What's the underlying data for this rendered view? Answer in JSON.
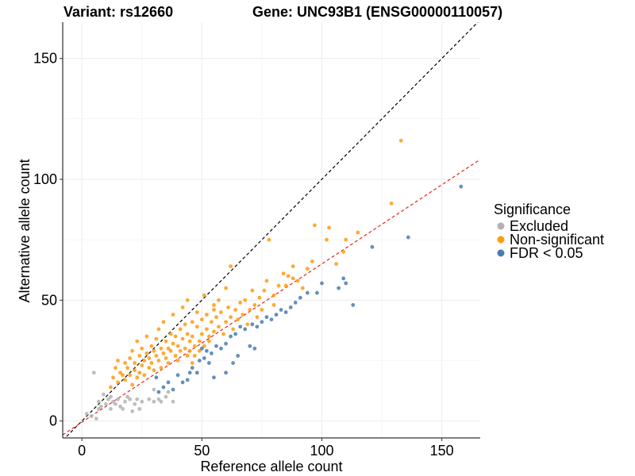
{
  "chart_data": {
    "type": "scatter",
    "title": "Variant: rs12660",
    "subtitle": "Gene: UNC93B1 (ENSG00000110057)",
    "xlabel": "Reference allele count",
    "ylabel": "Alternative allele count",
    "xlim": [
      -8,
      166
    ],
    "ylim": [
      -7,
      165
    ],
    "x_ticks": [
      0,
      50,
      100,
      150
    ],
    "y_ticks": [
      0,
      50,
      100,
      150
    ],
    "grid": true,
    "legend": {
      "title": "Significance",
      "placement": "right",
      "entries": [
        {
          "name": "Excluded",
          "color": "#b3b3b3"
        },
        {
          "name": "Non-significant",
          "color": "#ff9a0e"
        },
        {
          "name": "FDR < 0.05",
          "color": "#4a7bb0"
        }
      ]
    },
    "reference_lines": [
      {
        "name": "identity",
        "slope": 1,
        "intercept": 0,
        "color": "#000000",
        "style": "dashed"
      },
      {
        "name": "fit",
        "slope": 0.655,
        "intercept": -0.5,
        "color": "#e8231d",
        "style": "dashed"
      }
    ],
    "series": [
      {
        "name": "Excluded",
        "color": "#b3b3b3",
        "points": [
          [
            5,
            20
          ],
          [
            2,
            3
          ],
          [
            4,
            2
          ],
          [
            6,
            1
          ],
          [
            7,
            5
          ],
          [
            7,
            8
          ],
          [
            8,
            6
          ],
          [
            9,
            11
          ],
          [
            10,
            7
          ],
          [
            11,
            9
          ],
          [
            12,
            5
          ],
          [
            12,
            10
          ],
          [
            13,
            8
          ],
          [
            14,
            7
          ],
          [
            15,
            9
          ],
          [
            16,
            6
          ],
          [
            17,
            5
          ],
          [
            18,
            8
          ],
          [
            19,
            10
          ],
          [
            20,
            9
          ],
          [
            21,
            4
          ],
          [
            22,
            7
          ],
          [
            23,
            9
          ],
          [
            24,
            5
          ],
          [
            25,
            8
          ],
          [
            28,
            9
          ],
          [
            30,
            8
          ],
          [
            30,
            13
          ],
          [
            32,
            9
          ],
          [
            33,
            8
          ],
          [
            35,
            10
          ],
          [
            36,
            12
          ],
          [
            38,
            8
          ]
        ]
      },
      {
        "name": "Non-significant",
        "color": "#ff9a0e",
        "points": [
          [
            12,
            14
          ],
          [
            13,
            18
          ],
          [
            14,
            22
          ],
          [
            15,
            16
          ],
          [
            16,
            20
          ],
          [
            15,
            25
          ],
          [
            17,
            19
          ],
          [
            18,
            24
          ],
          [
            18,
            17
          ],
          [
            19,
            22
          ],
          [
            20,
            26
          ],
          [
            20,
            19
          ],
          [
            21,
            15
          ],
          [
            21,
            29
          ],
          [
            22,
            21
          ],
          [
            22,
            24
          ],
          [
            23,
            18
          ],
          [
            23,
            33
          ],
          [
            24,
            27
          ],
          [
            24,
            20
          ],
          [
            25,
            23
          ],
          [
            25,
            30
          ],
          [
            26,
            25
          ],
          [
            26,
            19
          ],
          [
            27,
            28
          ],
          [
            27,
            35
          ],
          [
            28,
            22
          ],
          [
            28,
            26
          ],
          [
            29,
            31
          ],
          [
            29,
            24
          ],
          [
            30,
            29
          ],
          [
            30,
            21
          ],
          [
            31,
            34
          ],
          [
            31,
            27
          ],
          [
            32,
            25
          ],
          [
            32,
            38
          ],
          [
            33,
            30
          ],
          [
            33,
            22
          ],
          [
            34,
            28
          ],
          [
            34,
            41
          ],
          [
            35,
            33
          ],
          [
            35,
            26
          ],
          [
            36,
            30
          ],
          [
            36,
            24
          ],
          [
            37,
            36
          ],
          [
            37,
            29
          ],
          [
            38,
            32
          ],
          [
            38,
            44
          ],
          [
            39,
            27
          ],
          [
            39,
            35
          ],
          [
            40,
            31
          ],
          [
            40,
            25
          ],
          [
            41,
            38
          ],
          [
            41,
            29
          ],
          [
            42,
            34
          ],
          [
            42,
            47
          ],
          [
            43,
            30
          ],
          [
            43,
            40
          ],
          [
            44,
            27
          ],
          [
            44,
            36
          ],
          [
            45,
            33
          ],
          [
            45,
            29
          ],
          [
            46,
            41
          ],
          [
            46,
            35
          ],
          [
            47,
            31
          ],
          [
            47,
            27
          ],
          [
            48,
            39
          ],
          [
            48,
            45
          ],
          [
            49,
            33
          ],
          [
            49,
            29
          ],
          [
            50,
            36
          ],
          [
            50,
            42
          ],
          [
            51,
            31
          ],
          [
            51,
            52
          ],
          [
            52,
            38
          ],
          [
            52,
            44
          ],
          [
            53,
            35
          ],
          [
            54,
            41
          ],
          [
            55,
            37
          ],
          [
            55,
            48
          ],
          [
            56,
            43
          ],
          [
            57,
            39
          ],
          [
            58,
            45
          ],
          [
            59,
            36
          ],
          [
            60,
            41
          ],
          [
            61,
            47
          ],
          [
            62,
            43
          ],
          [
            63,
            38
          ],
          [
            64,
            46
          ],
          [
            65,
            42
          ],
          [
            66,
            49
          ],
          [
            67,
            44
          ],
          [
            68,
            50
          ],
          [
            69,
            40
          ],
          [
            70,
            46
          ],
          [
            71,
            54
          ],
          [
            72,
            48
          ],
          [
            73,
            43
          ],
          [
            74,
            51
          ],
          [
            75,
            46
          ],
          [
            76,
            54
          ],
          [
            77,
            58
          ],
          [
            78,
            75
          ],
          [
            80,
            52
          ],
          [
            82,
            56
          ],
          [
            84,
            61
          ],
          [
            86,
            60
          ],
          [
            88,
            64
          ],
          [
            90,
            58
          ],
          [
            92,
            55
          ],
          [
            94,
            63
          ],
          [
            96,
            66
          ],
          [
            97,
            81
          ],
          [
            102,
            75
          ],
          [
            103,
            80
          ],
          [
            106,
            65
          ],
          [
            109,
            70
          ],
          [
            110,
            75
          ],
          [
            115,
            78
          ],
          [
            129,
            90
          ],
          [
            133,
            116
          ],
          [
            88,
            59
          ],
          [
            85,
            56
          ],
          [
            80,
            48
          ],
          [
            60,
            55
          ],
          [
            55,
            46
          ],
          [
            62,
            64
          ],
          [
            53,
            33
          ],
          [
            57,
            50
          ],
          [
            46,
            24
          ],
          [
            44,
            50
          ]
        ]
      },
      {
        "name": "FDR < 0.05",
        "color": "#4a7bb0",
        "points": [
          [
            158,
            97
          ],
          [
            136,
            76
          ],
          [
            121,
            72
          ],
          [
            113,
            48
          ],
          [
            110,
            57
          ],
          [
            109,
            59
          ],
          [
            107,
            55
          ],
          [
            100,
            57
          ],
          [
            98,
            53
          ],
          [
            94,
            53
          ],
          [
            91,
            51
          ],
          [
            89,
            49
          ],
          [
            87,
            47
          ],
          [
            85,
            45
          ],
          [
            83,
            46
          ],
          [
            81,
            44
          ],
          [
            79,
            42
          ],
          [
            77,
            43
          ],
          [
            75,
            41
          ],
          [
            73,
            39
          ],
          [
            71,
            40
          ],
          [
            68,
            38
          ],
          [
            66,
            39
          ],
          [
            64,
            36
          ],
          [
            62,
            35
          ],
          [
            60,
            32
          ],
          [
            58,
            30
          ],
          [
            56,
            31
          ],
          [
            54,
            28
          ],
          [
            53,
            24
          ],
          [
            52,
            29
          ],
          [
            51,
            26
          ],
          [
            50,
            30
          ],
          [
            49,
            25
          ],
          [
            48,
            20
          ],
          [
            46,
            22
          ],
          [
            45,
            20
          ],
          [
            44,
            17
          ],
          [
            42,
            16
          ],
          [
            40,
            19
          ],
          [
            38,
            13
          ],
          [
            36,
            16
          ],
          [
            34,
            14
          ],
          [
            32,
            12
          ],
          [
            31,
            18
          ],
          [
            70,
            31
          ],
          [
            63,
            24
          ],
          [
            60,
            20
          ],
          [
            55,
            18
          ],
          [
            65,
            27
          ],
          [
            72,
            30
          ]
        ]
      }
    ]
  }
}
